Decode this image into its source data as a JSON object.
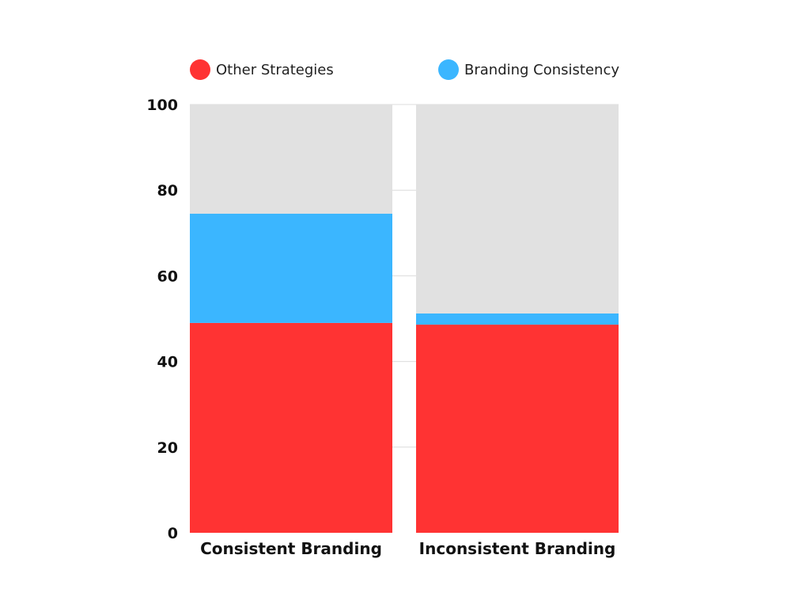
{
  "chart_data": {
    "type": "bar",
    "stacked": true,
    "categories": [
      "Consistent Branding",
      "Inconsistent Branding"
    ],
    "series": [
      {
        "name": "Other Strategies",
        "values": [
          49,
          48.6
        ],
        "color": "#ff3333"
      },
      {
        "name": "Branding Consistency",
        "values": [
          25.5,
          2.6
        ],
        "color": "#3bb6ff"
      }
    ],
    "remainder_color": "#e1e1e1",
    "y_ticks": [
      0,
      20,
      40,
      60,
      80,
      100
    ],
    "ylim": [
      0,
      100
    ],
    "title": "",
    "xlabel": "",
    "ylabel": "",
    "grid": true,
    "legend_position": "top"
  }
}
